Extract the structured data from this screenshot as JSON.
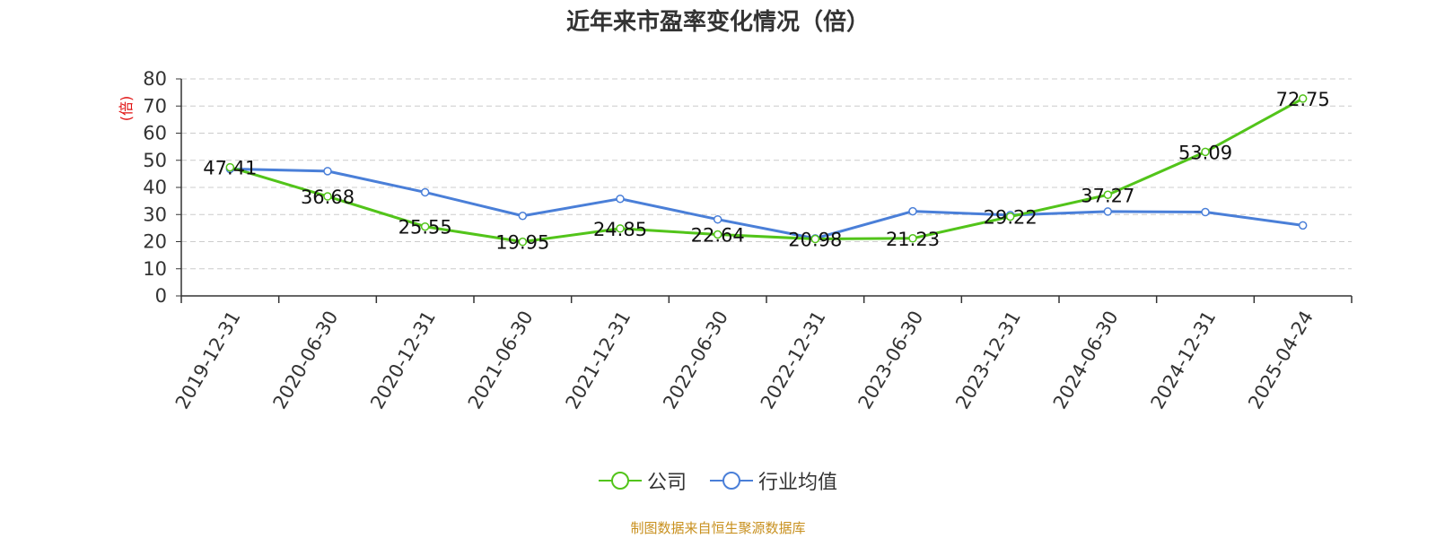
{
  "title": "近年来市盈率变化情况（倍）",
  "source_note": "制图数据来自恒生聚源数据库",
  "colors": {
    "company": "#52c41a",
    "industry": "#4a7fd8",
    "ylabel": "#e01010",
    "source": "#c8901e"
  },
  "chart_data": {
    "type": "line",
    "title": "近年来市盈率变化情况（倍）",
    "ylabel": "(倍)",
    "xlabel": "",
    "ylim": [
      0,
      80
    ],
    "yticks": [
      0,
      10,
      20,
      30,
      40,
      50,
      60,
      70,
      80
    ],
    "grid": true,
    "legend_position": "bottom-center",
    "categories": [
      "2019-12-31",
      "2020-06-30",
      "2020-12-31",
      "2021-06-30",
      "2021-12-31",
      "2022-06-30",
      "2022-12-31",
      "2023-06-30",
      "2023-12-31",
      "2024-06-30",
      "2024-12-31",
      "2025-04-24"
    ],
    "series": [
      {
        "name": "公司",
        "color": "#52c41a",
        "show_labels": true,
        "values": [
          47.41,
          36.68,
          25.55,
          19.95,
          24.85,
          22.64,
          20.98,
          21.23,
          29.22,
          37.27,
          53.09,
          72.75
        ]
      },
      {
        "name": "行业均值",
        "color": "#4a7fd8",
        "show_labels": false,
        "values": [
          46.8,
          46.0,
          38.2,
          29.5,
          35.8,
          28.2,
          21.2,
          31.2,
          29.8,
          31.1,
          30.9,
          26.0
        ]
      }
    ]
  }
}
